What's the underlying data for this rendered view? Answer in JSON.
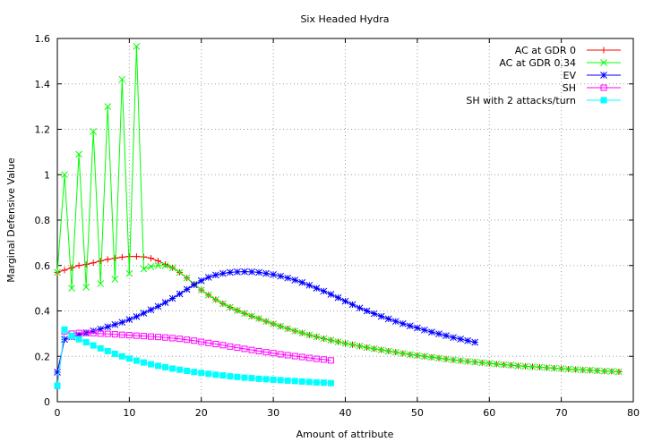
{
  "chart_data": {
    "type": "line",
    "title": "Six Headed Hydra",
    "xlabel": "Amount of attribute",
    "ylabel": "Marginal Defensive Value",
    "xlim": [
      0,
      80
    ],
    "ylim": [
      0,
      1.6
    ],
    "xticks": [
      "0",
      "10",
      "20",
      "30",
      "40",
      "50",
      "60",
      "70",
      "80"
    ],
    "yticks": [
      "0",
      "0.2",
      "0.4",
      "0.6",
      "0.8",
      "1",
      "1.2",
      "1.4",
      "1.6"
    ],
    "grid": true,
    "legend_position": "top-right",
    "series": [
      {
        "name": "AC at GDR 0",
        "color": "#ff0000",
        "marker": "plus",
        "x": [
          0,
          1,
          2,
          3,
          4,
          5,
          6,
          7,
          8,
          9,
          10,
          11,
          12,
          13,
          14,
          15,
          16,
          17,
          18,
          19,
          20,
          21,
          22,
          23,
          24,
          25,
          26,
          27,
          28,
          29,
          30,
          31,
          32,
          33,
          34,
          35,
          36,
          37,
          38,
          39,
          40,
          41,
          42,
          43,
          44,
          45,
          46,
          47,
          48,
          49,
          50,
          51,
          52,
          53,
          54,
          55,
          56,
          57,
          58,
          59,
          60,
          61,
          62,
          63,
          64,
          65,
          66,
          67,
          68,
          69,
          70,
          71,
          72,
          73,
          74,
          75,
          76,
          77,
          78
        ],
        "y": [
          0.57,
          0.58,
          0.59,
          0.6,
          0.605,
          0.612,
          0.62,
          0.627,
          0.632,
          0.637,
          0.64,
          0.64,
          0.638,
          0.632,
          0.62,
          0.605,
          0.59,
          0.57,
          0.545,
          0.518,
          0.492,
          0.47,
          0.45,
          0.432,
          0.416,
          0.402,
          0.389,
          0.377,
          0.366,
          0.354,
          0.343,
          0.332,
          0.322,
          0.312,
          0.303,
          0.294,
          0.286,
          0.278,
          0.271,
          0.264,
          0.257,
          0.251,
          0.245,
          0.239,
          0.233,
          0.228,
          0.223,
          0.218,
          0.213,
          0.208,
          0.204,
          0.2,
          0.196,
          0.192,
          0.188,
          0.184,
          0.181,
          0.178,
          0.175,
          0.172,
          0.169,
          0.166,
          0.163,
          0.161,
          0.158,
          0.156,
          0.154,
          0.152,
          0.15,
          0.148,
          0.146,
          0.144,
          0.142,
          0.14,
          0.139,
          0.137,
          0.135,
          0.134,
          0.132
        ]
      },
      {
        "name": "AC at GDR 0.34",
        "color": "#00ff00",
        "marker": "cross",
        "x": [
          0,
          1,
          2,
          3,
          4,
          5,
          6,
          7,
          8,
          9,
          10,
          11,
          12,
          13,
          14,
          15,
          16,
          17,
          18,
          19,
          20,
          21,
          22,
          23,
          24,
          25,
          26,
          27,
          28,
          29,
          30,
          31,
          32,
          33,
          34,
          35,
          36,
          37,
          38,
          39,
          40,
          41,
          42,
          43,
          44,
          45,
          46,
          47,
          48,
          49,
          50,
          51,
          52,
          53,
          54,
          55,
          56,
          57,
          58,
          59,
          60,
          61,
          62,
          63,
          64,
          65,
          66,
          67,
          68,
          69,
          70,
          71,
          72,
          73,
          74,
          75,
          76,
          77,
          78
        ],
        "y": [
          0.57,
          1.0,
          0.5,
          1.09,
          0.505,
          1.19,
          0.52,
          1.3,
          0.54,
          1.42,
          0.565,
          1.565,
          0.585,
          0.595,
          0.6,
          0.6,
          0.59,
          0.57,
          0.545,
          0.518,
          0.492,
          0.47,
          0.45,
          0.432,
          0.416,
          0.402,
          0.389,
          0.377,
          0.366,
          0.354,
          0.343,
          0.332,
          0.322,
          0.312,
          0.303,
          0.294,
          0.286,
          0.278,
          0.271,
          0.264,
          0.257,
          0.251,
          0.245,
          0.239,
          0.233,
          0.228,
          0.223,
          0.218,
          0.213,
          0.208,
          0.204,
          0.2,
          0.196,
          0.192,
          0.188,
          0.184,
          0.181,
          0.178,
          0.175,
          0.172,
          0.169,
          0.166,
          0.163,
          0.161,
          0.158,
          0.156,
          0.154,
          0.152,
          0.15,
          0.148,
          0.146,
          0.144,
          0.142,
          0.14,
          0.139,
          0.137,
          0.135,
          0.134,
          0.132
        ]
      },
      {
        "name": "EV",
        "color": "#0000ff",
        "marker": "star",
        "x": [
          0,
          1,
          2,
          3,
          4,
          5,
          6,
          7,
          8,
          9,
          10,
          11,
          12,
          13,
          14,
          15,
          16,
          17,
          18,
          19,
          20,
          21,
          22,
          23,
          24,
          25,
          26,
          27,
          28,
          29,
          30,
          31,
          32,
          33,
          34,
          35,
          36,
          37,
          38,
          39,
          40,
          41,
          42,
          43,
          44,
          45,
          46,
          47,
          48,
          49,
          50,
          51,
          52,
          53,
          54,
          55,
          56,
          57,
          58
        ],
        "y": [
          0.13,
          0.275,
          0.285,
          0.295,
          0.303,
          0.312,
          0.32,
          0.33,
          0.34,
          0.35,
          0.362,
          0.375,
          0.39,
          0.405,
          0.42,
          0.437,
          0.455,
          0.475,
          0.495,
          0.515,
          0.533,
          0.548,
          0.558,
          0.565,
          0.57,
          0.572,
          0.573,
          0.572,
          0.57,
          0.565,
          0.56,
          0.553,
          0.545,
          0.536,
          0.525,
          0.513,
          0.5,
          0.487,
          0.473,
          0.458,
          0.443,
          0.428,
          0.413,
          0.4,
          0.388,
          0.376,
          0.365,
          0.354,
          0.344,
          0.334,
          0.325,
          0.316,
          0.307,
          0.299,
          0.291,
          0.283,
          0.276,
          0.269,
          0.262
        ]
      },
      {
        "name": "SH",
        "color": "#ff00ff",
        "marker": "open-square",
        "x": [
          0,
          1,
          2,
          3,
          4,
          5,
          6,
          7,
          8,
          9,
          10,
          11,
          12,
          13,
          14,
          15,
          16,
          17,
          18,
          19,
          20,
          21,
          22,
          23,
          24,
          25,
          26,
          27,
          28,
          29,
          30,
          31,
          32,
          33,
          34,
          35,
          36,
          37,
          38
        ],
        "y": [
          0.07,
          0.31,
          0.3,
          0.303,
          0.303,
          0.302,
          0.3,
          0.299,
          0.297,
          0.295,
          0.293,
          0.291,
          0.289,
          0.287,
          0.285,
          0.283,
          0.28,
          0.277,
          0.273,
          0.269,
          0.264,
          0.259,
          0.254,
          0.249,
          0.243,
          0.238,
          0.233,
          0.228,
          0.223,
          0.218,
          0.214,
          0.209,
          0.205,
          0.201,
          0.197,
          0.193,
          0.189,
          0.186,
          0.182
        ]
      },
      {
        "name": "SH with 2 attacks/turn",
        "color": "#00ffff",
        "marker": "filled-square",
        "x": [
          0,
          1,
          2,
          3,
          4,
          5,
          6,
          7,
          8,
          9,
          10,
          11,
          12,
          13,
          14,
          15,
          16,
          17,
          18,
          19,
          20,
          21,
          22,
          23,
          24,
          25,
          26,
          27,
          28,
          29,
          30,
          31,
          32,
          33,
          34,
          35,
          36,
          37,
          38
        ],
        "y": [
          0.07,
          0.318,
          0.29,
          0.275,
          0.262,
          0.248,
          0.235,
          0.223,
          0.211,
          0.2,
          0.19,
          0.181,
          0.173,
          0.165,
          0.158,
          0.152,
          0.146,
          0.141,
          0.136,
          0.131,
          0.127,
          0.123,
          0.119,
          0.116,
          0.112,
          0.109,
          0.106,
          0.104,
          0.101,
          0.099,
          0.097,
          0.095,
          0.093,
          0.091,
          0.089,
          0.087,
          0.085,
          0.084,
          0.082
        ]
      }
    ]
  }
}
